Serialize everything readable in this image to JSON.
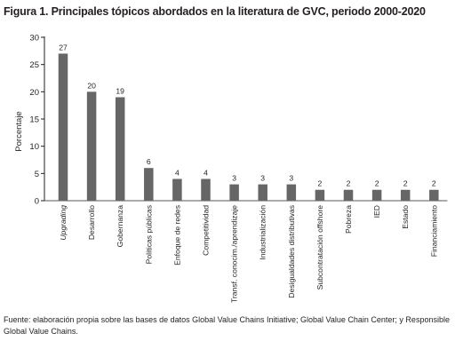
{
  "chart_data": {
    "type": "bar",
    "title": "Figura 1. Principales tópicos abordados en la literatura de GVC, periodo 2000-2020",
    "ylabel": "Porcentaje",
    "xlabel": "",
    "ylim": [
      0,
      30
    ],
    "yticks": [
      0,
      5,
      10,
      15,
      20,
      25,
      30
    ],
    "grid": false,
    "bar_color": "#666666",
    "categories": [
      "Upgrading",
      "Desarrollo",
      "Gobernanza",
      "Políticas públicas",
      "Enfoque de redes",
      "Competitividad",
      "Transf. conocim./aprendizaje",
      "Industrialización",
      "Desigualdades distributivas",
      "Subcontratación offshore",
      "Pobreza",
      "IED",
      "Estado",
      "Financiamiento"
    ],
    "values": [
      27,
      20,
      19,
      6,
      4,
      4,
      3,
      3,
      3,
      2,
      2,
      2,
      2,
      2
    ],
    "data_labels": [
      "27",
      "20",
      "19",
      "6",
      "4",
      "4",
      "3",
      "3",
      "3",
      "2",
      "2",
      "2",
      "2",
      "2"
    ]
  },
  "source_note": "Fuente: elaboración propia sobre las bases de datos Global Value Chains Initiative; Global Value Chain Center; y Responsible Global Value Chains."
}
